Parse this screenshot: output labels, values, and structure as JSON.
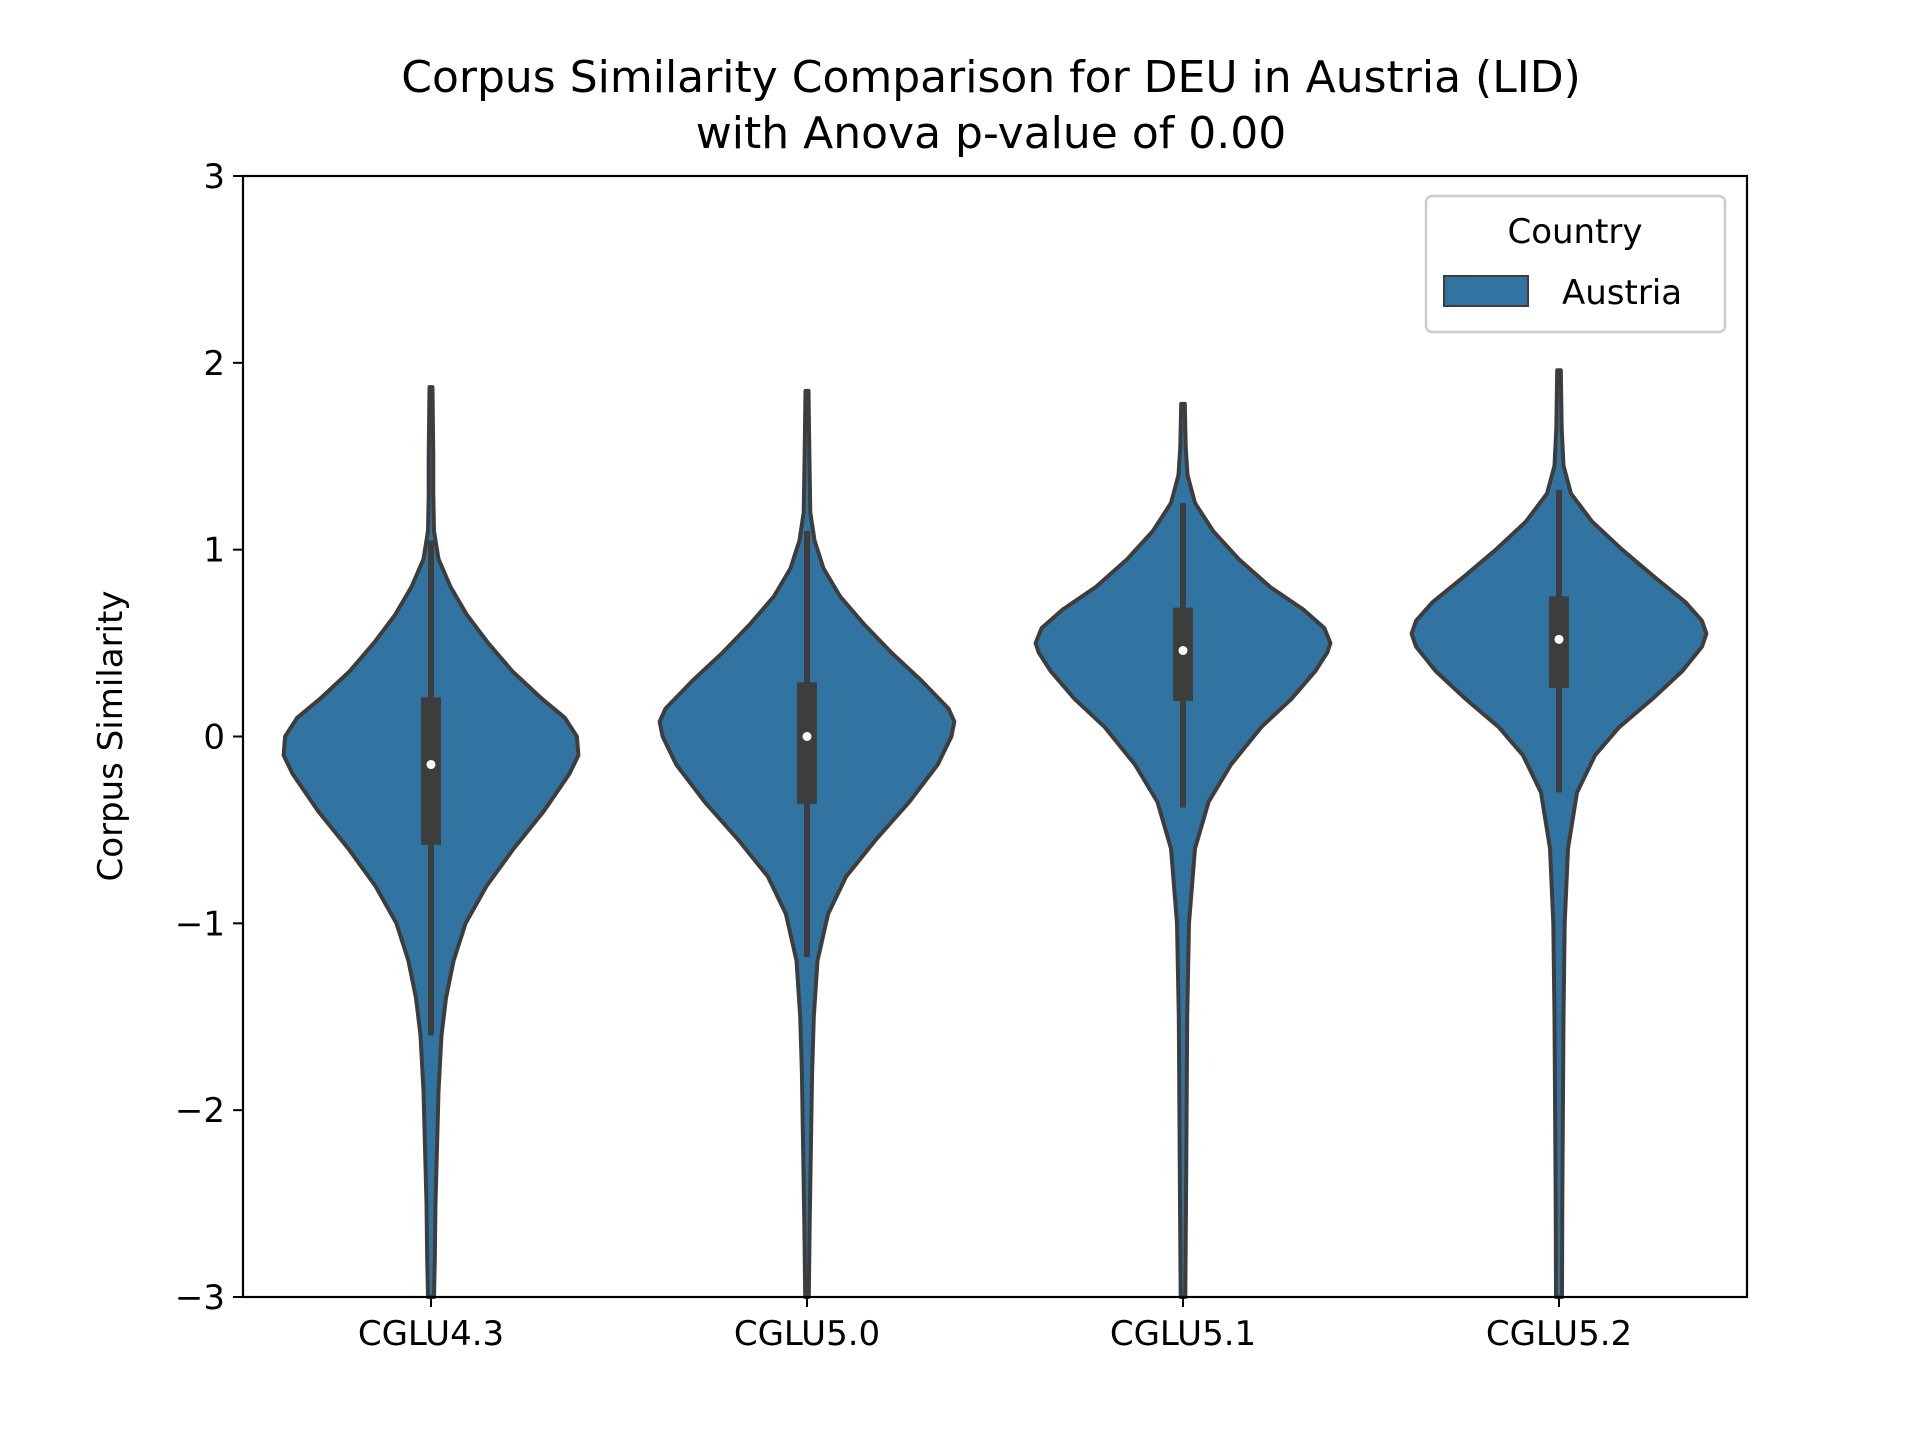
{
  "chart_data": {
    "type": "violin",
    "title": "Corpus Similarity Comparison for DEU in Austria (LID)",
    "subtitle": "with Anova p-value of 0.00",
    "xlabel": "",
    "ylabel": "Corpus Similarity",
    "ylim": [
      -3,
      3
    ],
    "yticks": [
      -3,
      -2,
      -1,
      0,
      1,
      2,
      3
    ],
    "ytick_labels": [
      "−3",
      "−2",
      "−1",
      "0",
      "1",
      "2",
      "3"
    ],
    "categories": [
      "CGLU4.3",
      "CGLU5.0",
      "CGLU5.1",
      "CGLU5.2"
    ],
    "grid": false,
    "legend": {
      "title": "Country",
      "entries": [
        "Austria"
      ],
      "placement": "top-right"
    },
    "colors": {
      "fill": "#3274a1",
      "edge": "#3d3d3d",
      "median": "#ffffff"
    },
    "series": [
      {
        "name": "Austria",
        "violins": [
          {
            "category": "CGLU4.3",
            "median": -0.15,
            "q1": -0.58,
            "q3": 0.21,
            "whisker_low": -1.6,
            "whisker_high": 1.05,
            "density": [
              [
                -3.0,
                0.02
              ],
              [
                -2.8,
                0.025
              ],
              [
                -2.5,
                0.03
              ],
              [
                -2.2,
                0.04
              ],
              [
                -1.9,
                0.05
              ],
              [
                -1.6,
                0.07
              ],
              [
                -1.4,
                0.1
              ],
              [
                -1.2,
                0.15
              ],
              [
                -1.0,
                0.23
              ],
              [
                -0.8,
                0.37
              ],
              [
                -0.6,
                0.55
              ],
              [
                -0.4,
                0.75
              ],
              [
                -0.2,
                0.92
              ],
              [
                -0.1,
                0.98
              ],
              [
                0.0,
                0.97
              ],
              [
                0.1,
                0.89
              ],
              [
                0.2,
                0.74
              ],
              [
                0.35,
                0.54
              ],
              [
                0.5,
                0.38
              ],
              [
                0.65,
                0.24
              ],
              [
                0.8,
                0.13
              ],
              [
                0.95,
                0.05
              ],
              [
                1.1,
                0.02
              ],
              [
                1.3,
                0.015
              ],
              [
                1.5,
                0.015
              ],
              [
                1.87,
                0.01
              ]
            ]
          },
          {
            "category": "CGLU5.0",
            "median": 0.0,
            "q1": -0.36,
            "q3": 0.29,
            "whisker_low": -1.18,
            "whisker_high": 1.1,
            "density": [
              [
                -3.0,
                0.012
              ],
              [
                -2.6,
                0.018
              ],
              [
                -2.2,
                0.026
              ],
              [
                -1.8,
                0.034
              ],
              [
                -1.5,
                0.045
              ],
              [
                -1.2,
                0.07
              ],
              [
                -0.95,
                0.14
              ],
              [
                -0.75,
                0.26
              ],
              [
                -0.55,
                0.46
              ],
              [
                -0.35,
                0.68
              ],
              [
                -0.15,
                0.87
              ],
              [
                0.0,
                0.96
              ],
              [
                0.08,
                0.98
              ],
              [
                0.15,
                0.94
              ],
              [
                0.3,
                0.76
              ],
              [
                0.45,
                0.56
              ],
              [
                0.6,
                0.38
              ],
              [
                0.75,
                0.22
              ],
              [
                0.9,
                0.11
              ],
              [
                1.05,
                0.05
              ],
              [
                1.2,
                0.022
              ],
              [
                1.5,
                0.016
              ],
              [
                1.85,
                0.01
              ]
            ]
          },
          {
            "category": "CGLU5.1",
            "median": 0.46,
            "q1": 0.19,
            "q3": 0.69,
            "whisker_low": -0.38,
            "whisker_high": 1.25,
            "density": [
              [
                -3.0,
                0.015
              ],
              [
                -2.5,
                0.02
              ],
              [
                -2.0,
                0.024
              ],
              [
                -1.5,
                0.028
              ],
              [
                -1.0,
                0.04
              ],
              [
                -0.6,
                0.08
              ],
              [
                -0.35,
                0.17
              ],
              [
                -0.15,
                0.32
              ],
              [
                0.05,
                0.52
              ],
              [
                0.2,
                0.72
              ],
              [
                0.35,
                0.88
              ],
              [
                0.45,
                0.96
              ],
              [
                0.5,
                0.98
              ],
              [
                0.58,
                0.94
              ],
              [
                0.68,
                0.8
              ],
              [
                0.8,
                0.58
              ],
              [
                0.95,
                0.37
              ],
              [
                1.1,
                0.2
              ],
              [
                1.25,
                0.08
              ],
              [
                1.4,
                0.03
              ],
              [
                1.55,
                0.018
              ],
              [
                1.78,
                0.012
              ]
            ]
          },
          {
            "category": "CGLU5.2",
            "median": 0.52,
            "q1": 0.26,
            "q3": 0.75,
            "whisker_low": -0.3,
            "whisker_high": 1.32,
            "density": [
              [
                -3.0,
                0.02
              ],
              [
                -2.5,
                0.022
              ],
              [
                -2.0,
                0.026
              ],
              [
                -1.5,
                0.03
              ],
              [
                -1.0,
                0.038
              ],
              [
                -0.6,
                0.06
              ],
              [
                -0.3,
                0.12
              ],
              [
                -0.1,
                0.24
              ],
              [
                0.05,
                0.4
              ],
              [
                0.2,
                0.62
              ],
              [
                0.35,
                0.82
              ],
              [
                0.48,
                0.95
              ],
              [
                0.55,
                0.98
              ],
              [
                0.62,
                0.95
              ],
              [
                0.72,
                0.84
              ],
              [
                0.85,
                0.64
              ],
              [
                1.0,
                0.42
              ],
              [
                1.15,
                0.22
              ],
              [
                1.3,
                0.08
              ],
              [
                1.45,
                0.03
              ],
              [
                1.65,
                0.018
              ],
              [
                1.96,
                0.012
              ]
            ]
          }
        ]
      }
    ]
  }
}
